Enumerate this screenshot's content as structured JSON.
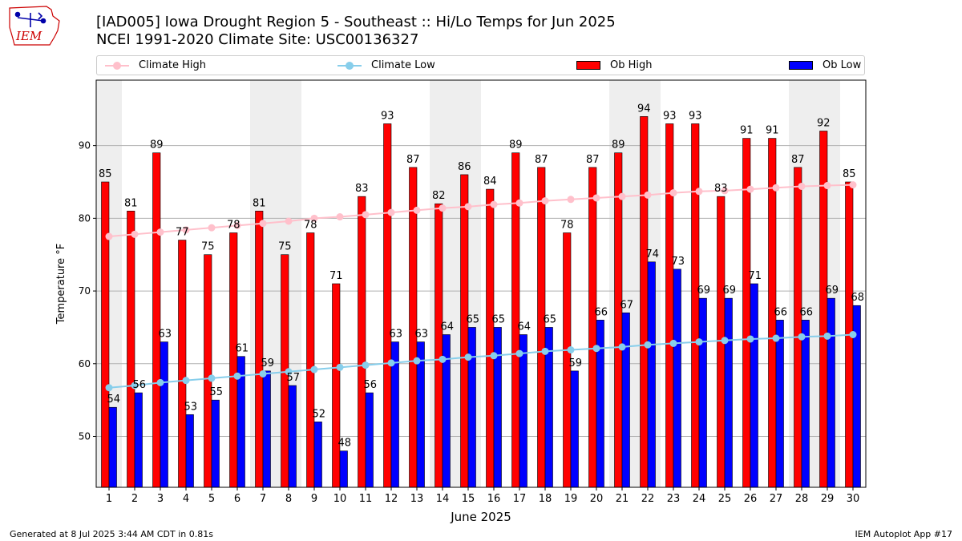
{
  "logo": {
    "text": "IEM",
    "color": "#cc0000"
  },
  "title_line1": "[IAD005] Iowa Drought Region 5 - Southeast :: Hi/Lo Temps for Jun 2025",
  "title_line2": "NCEI 1991-2020 Climate Site: USC00136327",
  "footer_left": "Generated at 8 Jul 2025 3:44 AM CDT in 0.81s",
  "footer_right": "IEM Autoplot App #17",
  "legend": {
    "climate_high": "Climate High",
    "climate_low": "Climate Low",
    "ob_high": "Ob High",
    "ob_low": "Ob Low"
  },
  "colors": {
    "ob_high": "#ff0000",
    "ob_low": "#0000ff",
    "climate_high": "#ffc0cb",
    "climate_low": "#87ceeb",
    "weekend_shade": "#eeeeee",
    "grid": "#b0b0b0"
  },
  "chart_data": {
    "type": "bar",
    "xlabel": "June 2025",
    "ylabel": "Temperature °F",
    "ylim": [
      43,
      99
    ],
    "yticks": [
      50,
      60,
      70,
      80,
      90
    ],
    "grid": "horizontal",
    "legend_position": "top",
    "categories": [
      "1",
      "2",
      "3",
      "4",
      "5",
      "6",
      "7",
      "8",
      "9",
      "10",
      "11",
      "12",
      "13",
      "14",
      "15",
      "16",
      "17",
      "18",
      "19",
      "20",
      "21",
      "22",
      "23",
      "24",
      "25",
      "26",
      "27",
      "28",
      "29",
      "30"
    ],
    "weekend_days": [
      1,
      7,
      8,
      14,
      15,
      21,
      22,
      28,
      29
    ],
    "series": [
      {
        "name": "Ob High",
        "kind": "bar",
        "show_labels": true,
        "values": [
          85,
          81,
          89,
          77,
          75,
          78,
          81,
          75,
          78,
          71,
          83,
          93,
          87,
          82,
          86,
          84,
          89,
          87,
          78,
          87,
          89,
          94,
          93,
          93,
          83,
          91,
          91,
          87,
          92,
          85
        ]
      },
      {
        "name": "Ob Low",
        "kind": "bar",
        "show_labels": true,
        "values": [
          54,
          56,
          63,
          53,
          55,
          61,
          59,
          57,
          52,
          48,
          56,
          63,
          63,
          64,
          65,
          65,
          64,
          65,
          59,
          66,
          67,
          74,
          73,
          69,
          69,
          71,
          66,
          66,
          69,
          68
        ]
      },
      {
        "name": "Climate High",
        "kind": "line",
        "values": [
          77.5,
          77.8,
          78.1,
          78.4,
          78.7,
          79.0,
          79.3,
          79.6,
          80.0,
          80.2,
          80.5,
          80.8,
          81.1,
          81.4,
          81.6,
          81.9,
          82.1,
          82.4,
          82.6,
          82.8,
          83.0,
          83.2,
          83.5,
          83.7,
          83.8,
          84.0,
          84.2,
          84.4,
          84.5,
          84.6
        ]
      },
      {
        "name": "Climate Low",
        "kind": "line",
        "values": [
          56.7,
          57.0,
          57.4,
          57.7,
          58.0,
          58.3,
          58.6,
          58.9,
          59.2,
          59.5,
          59.8,
          60.1,
          60.4,
          60.6,
          60.9,
          61.1,
          61.4,
          61.7,
          61.9,
          62.1,
          62.3,
          62.6,
          62.8,
          63.0,
          63.2,
          63.4,
          63.5,
          63.7,
          63.8,
          64.0
        ]
      }
    ]
  }
}
